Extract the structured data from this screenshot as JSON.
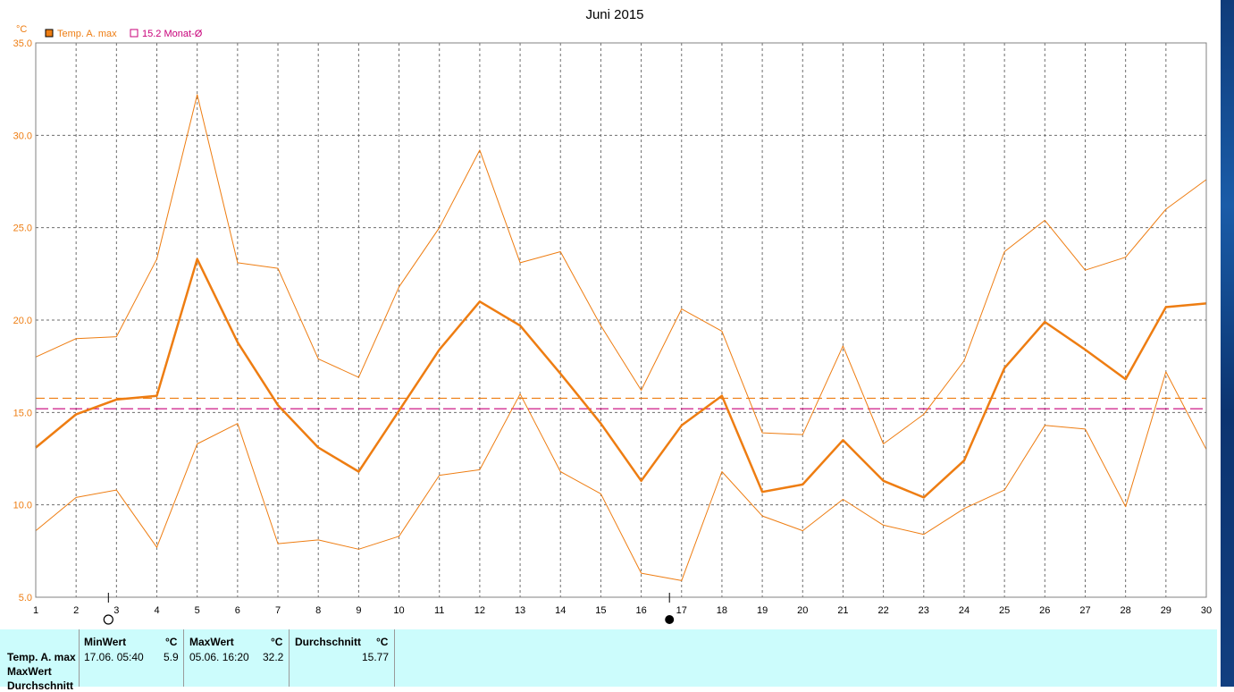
{
  "chart_data": {
    "type": "line",
    "title": "Juni 2015",
    "ylabel": "°C",
    "ylim": [
      5,
      35
    ],
    "yticks": [
      "5.0",
      "10.0",
      "15.0",
      "20.0",
      "25.0",
      "30.0",
      "35.0"
    ],
    "x": [
      1,
      2,
      3,
      4,
      5,
      6,
      7,
      8,
      9,
      10,
      11,
      12,
      13,
      14,
      15,
      16,
      17,
      18,
      19,
      20,
      21,
      22,
      23,
      24,
      25,
      26,
      27,
      28,
      29,
      30
    ],
    "series": [
      {
        "name": "Temp. A. max",
        "color": "#ee7d12",
        "values": [
          13.1,
          14.9,
          15.7,
          15.9,
          23.3,
          18.8,
          15.4,
          13.1,
          11.8,
          15.1,
          18.4,
          21.0,
          19.7,
          17.1,
          14.4,
          11.3,
          14.3,
          15.9,
          10.7,
          11.1,
          13.5,
          11.3,
          10.4,
          12.4,
          17.4,
          19.9,
          18.4,
          16.8,
          20.7,
          20.9
        ]
      },
      {
        "name": "",
        "color": "#ee7d12",
        "values": [
          18.0,
          19.0,
          19.1,
          23.3,
          32.2,
          23.1,
          22.8,
          17.9,
          16.9,
          21.8,
          25.0,
          29.2,
          23.1,
          23.7,
          19.7,
          16.2,
          20.6,
          19.4,
          13.9,
          13.8,
          18.6,
          13.3,
          14.9,
          17.8,
          23.7,
          25.4,
          22.7,
          23.4,
          26.0,
          27.6
        ]
      },
      {
        "name": "",
        "color": "#ee7d12",
        "values": [
          8.6,
          10.4,
          10.8,
          7.7,
          13.3,
          14.4,
          7.9,
          8.1,
          7.6,
          8.3,
          11.6,
          11.9,
          16.0,
          11.8,
          10.6,
          6.3,
          5.9,
          11.8,
          9.4,
          8.6,
          10.3,
          8.9,
          8.4,
          9.8,
          10.8,
          14.3,
          14.1,
          9.9,
          17.2,
          13.0
        ]
      }
    ],
    "reference_lines": [
      {
        "name": "15.2 Monat-Ø",
        "value": 15.2,
        "color": "#c8007a"
      },
      {
        "name": "",
        "value": 15.77,
        "color": "#ee7d12"
      }
    ],
    "moon_markers": [
      {
        "x": 2.8,
        "symbol": "full-moon-icon"
      },
      {
        "x": 16.7,
        "symbol": "new-moon-icon"
      }
    ],
    "legend_placement": "top-left",
    "grid": true
  },
  "stats": {
    "row_labels": [
      "Temp. A. max",
      "MaxWert",
      "Durchschnitt"
    ],
    "min": {
      "header": "MinWert",
      "unit": "°C",
      "time": "17.06.  05:40",
      "value": "5.9"
    },
    "max": {
      "header": "MaxWert",
      "unit": "°C",
      "time": "05.06.  16:20",
      "value": "32.2"
    },
    "avg": {
      "header": "Durchschnitt",
      "unit": "°C",
      "value": "15.77"
    }
  }
}
